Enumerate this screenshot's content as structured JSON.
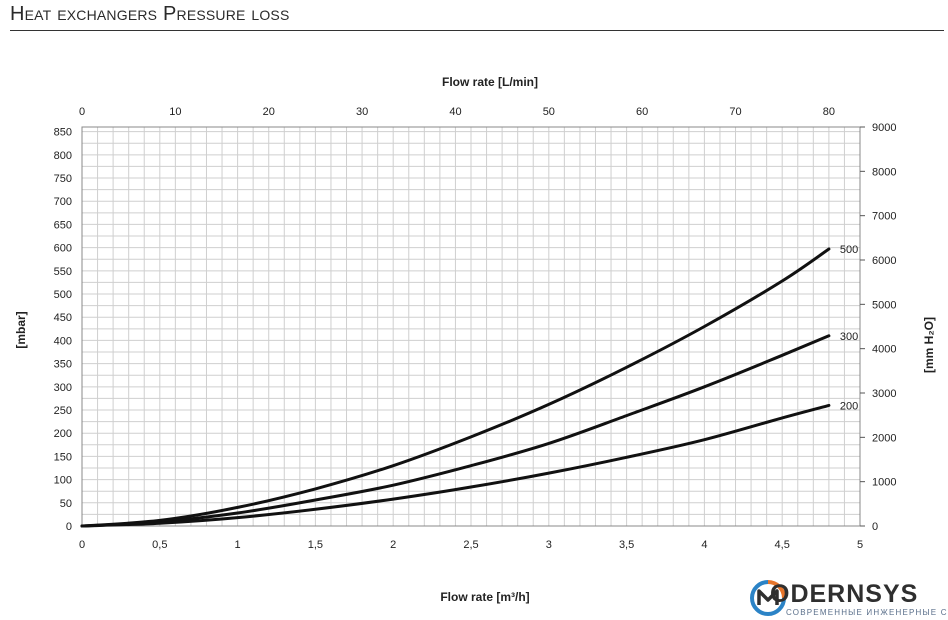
{
  "header": {
    "title": "Heat exchangers Pressure loss"
  },
  "brand": {
    "name": "ODERNSYS",
    "tagline": "СОВРЕМЕННЫЕ ИНЖЕНЕРНЫЕ СИСТЕМЫ",
    "colors": {
      "orange": "#e8752a",
      "blue": "#2b83c6"
    }
  },
  "chart_data": {
    "type": "line",
    "title": "",
    "xlabel": "Flow rate [m³/h]",
    "xlabel_top": "Flow rate [L/min]",
    "ylabel": "[mbar]",
    "ylabel_right": "[mm H₂O]",
    "xlim": [
      0,
      5
    ],
    "xlim_top": [
      0,
      83.33
    ],
    "ylim": [
      0,
      860
    ],
    "ylim_right": [
      0,
      9000
    ],
    "grid": true,
    "x_ticks": [
      "0",
      "0,5",
      "1",
      "1,5",
      "2",
      "2,5",
      "3",
      "3,5",
      "4",
      "4,5",
      "5"
    ],
    "x_tick_values": [
      0,
      0.5,
      1,
      1.5,
      2,
      2.5,
      3,
      3.5,
      4,
      4.5,
      5
    ],
    "x_top_ticks": [
      "0",
      "10",
      "20",
      "30",
      "40",
      "50",
      "60",
      "70",
      "80"
    ],
    "x_top_tick_values": [
      0,
      10,
      20,
      30,
      40,
      50,
      60,
      70,
      80
    ],
    "y_ticks": [
      "0",
      "50",
      "100",
      "150",
      "200",
      "250",
      "300",
      "350",
      "400",
      "450",
      "500",
      "550",
      "600",
      "650",
      "700",
      "750",
      "800",
      "850"
    ],
    "y_tick_values": [
      0,
      50,
      100,
      150,
      200,
      250,
      300,
      350,
      400,
      450,
      500,
      550,
      600,
      650,
      700,
      750,
      800,
      850
    ],
    "y_right_ticks": [
      "0",
      "1000",
      "2000",
      "3000",
      "4000",
      "5000",
      "6000",
      "7000",
      "8000",
      "9000"
    ],
    "y_right_tick_values": [
      0,
      1000,
      2000,
      3000,
      4000,
      5000,
      6000,
      7000,
      8000,
      9000
    ],
    "series": [
      {
        "name": "500",
        "x": [
          0,
          0.5,
          1,
          1.5,
          2,
          2.5,
          3,
          3.5,
          4,
          4.5,
          4.8
        ],
        "y": [
          0,
          12,
          40,
          80,
          130,
          192,
          262,
          342,
          430,
          528,
          597
        ]
      },
      {
        "name": "300",
        "x": [
          0,
          0.5,
          1,
          1.5,
          2,
          2.5,
          3,
          3.5,
          4,
          4.5,
          4.8
        ],
        "y": [
          0,
          9,
          28,
          56,
          88,
          130,
          178,
          238,
          300,
          368,
          410
        ]
      },
      {
        "name": "200",
        "x": [
          0,
          0.5,
          1,
          1.5,
          2,
          2.5,
          3,
          3.5,
          4,
          4.5,
          4.8
        ],
        "y": [
          0,
          6,
          18,
          36,
          58,
          84,
          114,
          148,
          186,
          233,
          260
        ]
      }
    ]
  }
}
